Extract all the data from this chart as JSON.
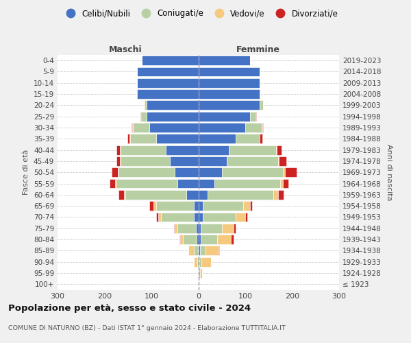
{
  "age_groups": [
    "100+",
    "95-99",
    "90-94",
    "85-89",
    "80-84",
    "75-79",
    "70-74",
    "65-69",
    "60-64",
    "55-59",
    "50-54",
    "45-49",
    "40-44",
    "35-39",
    "30-34",
    "25-29",
    "20-24",
    "15-19",
    "10-14",
    "5-9",
    "0-4"
  ],
  "birth_years": [
    "≤ 1923",
    "1924-1928",
    "1929-1933",
    "1934-1938",
    "1939-1943",
    "1944-1948",
    "1949-1953",
    "1954-1958",
    "1959-1963",
    "1964-1968",
    "1969-1973",
    "1974-1978",
    "1979-1983",
    "1984-1988",
    "1989-1993",
    "1994-1998",
    "1999-2003",
    "2004-2008",
    "2009-2013",
    "2014-2018",
    "2019-2023"
  ],
  "colors": {
    "celibi": "#4472c4",
    "coniugati": "#b8cfa4",
    "vedovi": "#f5c97e",
    "divorziati": "#cc2222"
  },
  "males": {
    "celibi": [
      0,
      0,
      0,
      1,
      3,
      5,
      10,
      10,
      25,
      45,
      50,
      60,
      70,
      90,
      105,
      110,
      110,
      130,
      130,
      130,
      120
    ],
    "coniugati": [
      0,
      0,
      2,
      8,
      30,
      40,
      70,
      80,
      130,
      130,
      120,
      105,
      95,
      55,
      35,
      12,
      5,
      2,
      0,
      0,
      0
    ],
    "vedovi": [
      0,
      1,
      8,
      12,
      5,
      5,
      5,
      5,
      3,
      2,
      2,
      2,
      2,
      1,
      1,
      0,
      1,
      0,
      0,
      0,
      0
    ],
    "divorziati": [
      0,
      0,
      0,
      0,
      2,
      2,
      5,
      10,
      12,
      12,
      12,
      8,
      8,
      5,
      2,
      2,
      0,
      0,
      0,
      0,
      0
    ]
  },
  "females": {
    "celibi": [
      0,
      1,
      2,
      3,
      5,
      5,
      10,
      10,
      20,
      35,
      50,
      60,
      65,
      80,
      100,
      110,
      130,
      130,
      130,
      130,
      110
    ],
    "coniugati": [
      0,
      2,
      5,
      12,
      35,
      45,
      70,
      85,
      140,
      140,
      130,
      110,
      100,
      50,
      35,
      12,
      8,
      2,
      0,
      0,
      0
    ],
    "vedovi": [
      2,
      5,
      20,
      28,
      30,
      25,
      20,
      15,
      10,
      5,
      5,
      2,
      2,
      1,
      1,
      0,
      0,
      0,
      0,
      0,
      0
    ],
    "divorziati": [
      0,
      0,
      0,
      2,
      5,
      5,
      5,
      5,
      12,
      12,
      25,
      15,
      10,
      5,
      2,
      2,
      0,
      0,
      0,
      0,
      0
    ]
  },
  "xlim": 300,
  "title": "Popolazione per età, sesso e stato civile - 2024",
  "subtitle": "COMUNE DI NATURNO (BZ) - Dati ISTAT 1° gennaio 2024 - Elaborazione TUTTITALIA.IT",
  "ylabel_left": "Fasce di età",
  "ylabel_right": "Anni di nascita",
  "xlabel_left": "Maschi",
  "xlabel_right": "Femmine",
  "bg_color": "#f0f0f0",
  "plot_bg_color": "#ffffff",
  "grid_color": "#cccccc"
}
